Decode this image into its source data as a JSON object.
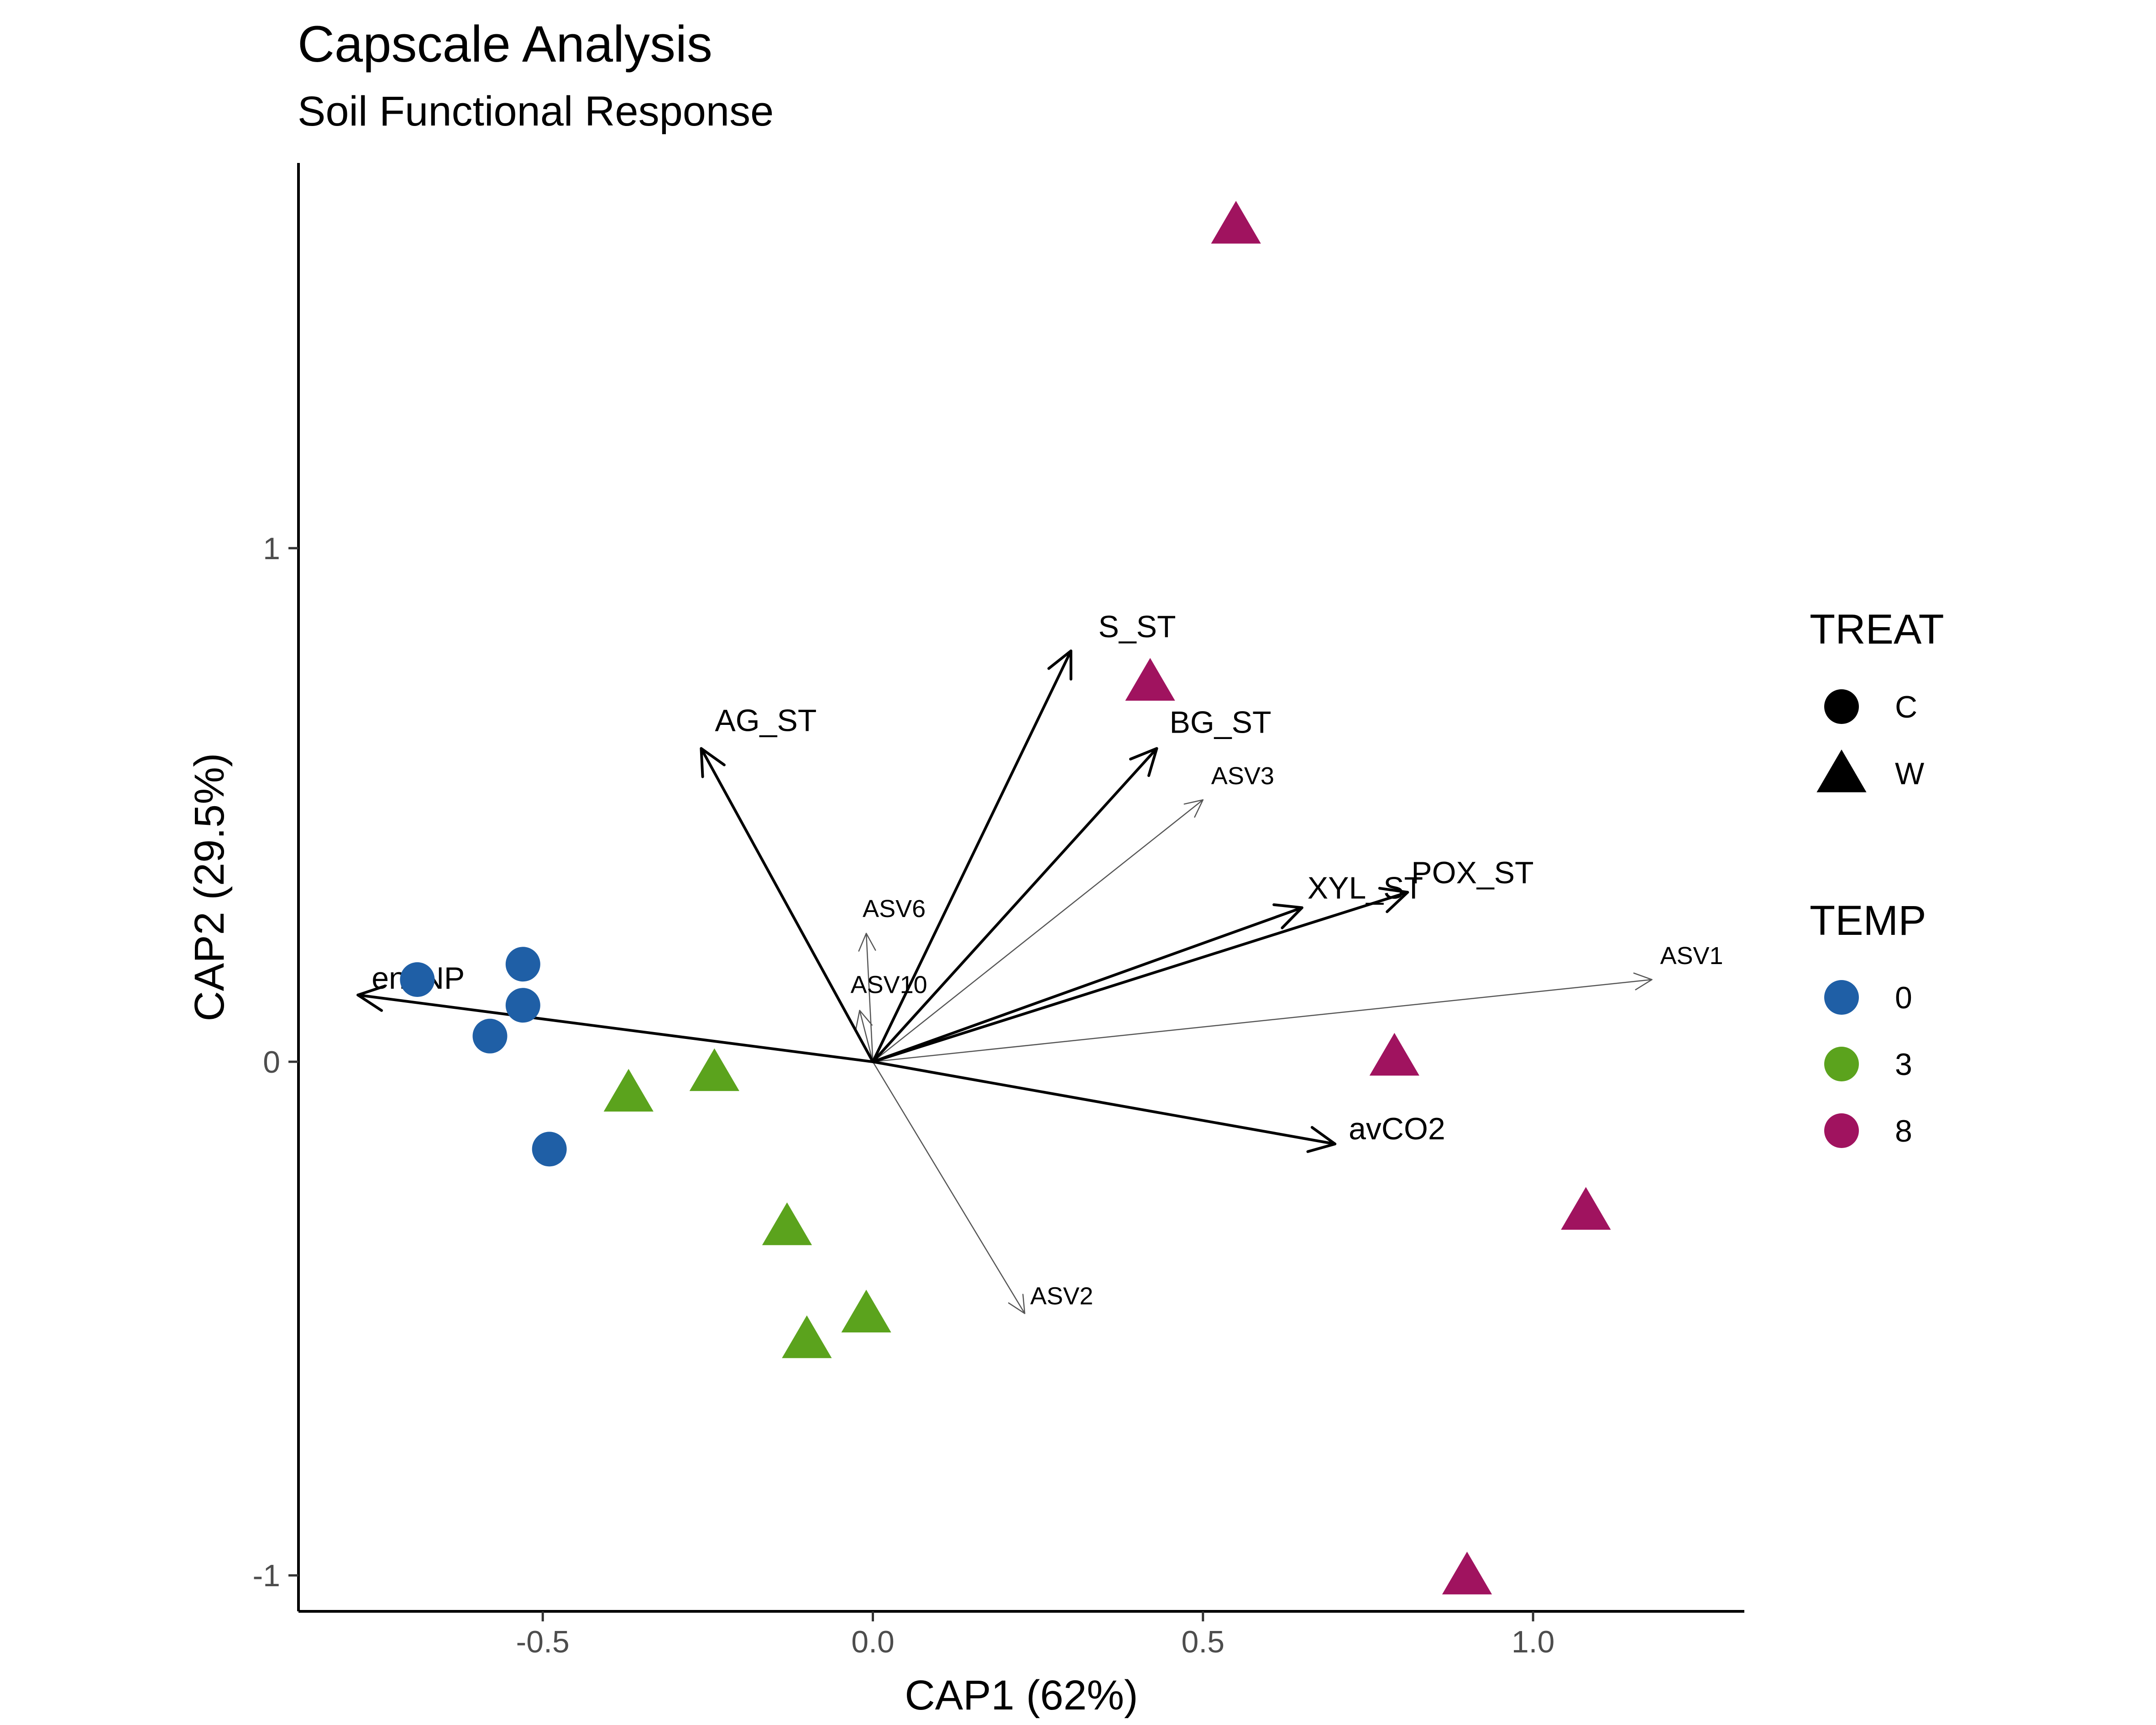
{
  "chart_data": {
    "type": "scatter",
    "title": "Capscale Analysis",
    "subtitle": "Soil Functional Response",
    "xlabel": "CAP1 (62%)",
    "ylabel": "CAP2 (29.5%)",
    "xlim": [
      -0.87,
      1.32
    ],
    "ylim": [
      -1.07,
      1.75
    ],
    "x_ticks": [
      {
        "value": -0.5,
        "label": "-0.5"
      },
      {
        "value": 0.0,
        "label": "0.0"
      },
      {
        "value": 0.5,
        "label": "0.5"
      },
      {
        "value": 1.0,
        "label": "1.0"
      }
    ],
    "y_ticks": [
      {
        "value": -1,
        "label": "-1"
      },
      {
        "value": 0,
        "label": "0"
      },
      {
        "value": 1,
        "label": "1"
      }
    ],
    "grid": false,
    "legend_position": "right",
    "legends": [
      {
        "title": "TREAT",
        "entries": [
          {
            "label": "C",
            "shape": "circle"
          },
          {
            "label": "W",
            "shape": "triangle"
          }
        ]
      },
      {
        "title": "TEMP",
        "entries": [
          {
            "label": "0",
            "color": "#1f5fa6"
          },
          {
            "label": "3",
            "color": "#5ba31d"
          },
          {
            "label": "8",
            "color": "#a0135f"
          }
        ]
      }
    ],
    "points": [
      {
        "x": -0.69,
        "y": 0.16,
        "treat": "C",
        "temp": "0"
      },
      {
        "x": -0.53,
        "y": 0.19,
        "treat": "C",
        "temp": "0"
      },
      {
        "x": -0.53,
        "y": 0.11,
        "treat": "C",
        "temp": "0"
      },
      {
        "x": -0.58,
        "y": 0.05,
        "treat": "C",
        "temp": "0"
      },
      {
        "x": -0.49,
        "y": -0.17,
        "treat": "C",
        "temp": "0"
      },
      {
        "x": -0.37,
        "y": -0.06,
        "treat": "W",
        "temp": "3"
      },
      {
        "x": -0.24,
        "y": -0.02,
        "treat": "W",
        "temp": "3"
      },
      {
        "x": -0.13,
        "y": -0.32,
        "treat": "W",
        "temp": "3"
      },
      {
        "x": -0.01,
        "y": -0.49,
        "treat": "W",
        "temp": "3"
      },
      {
        "x": -0.1,
        "y": -0.54,
        "treat": "W",
        "temp": "3"
      },
      {
        "x": 0.55,
        "y": 1.63,
        "treat": "W",
        "temp": "8"
      },
      {
        "x": 0.42,
        "y": 0.74,
        "treat": "W",
        "temp": "8"
      },
      {
        "x": 0.79,
        "y": 0.01,
        "treat": "W",
        "temp": "8"
      },
      {
        "x": 1.08,
        "y": -0.29,
        "treat": "W",
        "temp": "8"
      },
      {
        "x": 0.9,
        "y": -1.0,
        "treat": "W",
        "temp": "8"
      }
    ],
    "vectors_constraints": [
      {
        "name": "enzNP",
        "x": -0.78,
        "y": 0.13
      },
      {
        "name": "AG_ST",
        "x": -0.26,
        "y": 0.61
      },
      {
        "name": "S_ST",
        "x": 0.3,
        "y": 0.8
      },
      {
        "name": "BG_ST",
        "x": 0.43,
        "y": 0.61
      },
      {
        "name": "XYL_ST",
        "x": 0.65,
        "y": 0.3
      },
      {
        "name": "POX_ST",
        "x": 0.81,
        "y": 0.33
      },
      {
        "name": "avCO2",
        "x": 0.7,
        "y": -0.16
      }
    ],
    "vectors_species": [
      {
        "name": "ASV3",
        "x": 0.5,
        "y": 0.51
      },
      {
        "name": "ASV6",
        "x": -0.01,
        "y": 0.25
      },
      {
        "name": "ASV10",
        "x": -0.02,
        "y": 0.1
      },
      {
        "name": "ASV1",
        "x": 1.18,
        "y": 0.16
      },
      {
        "name": "ASV2",
        "x": 0.23,
        "y": -0.49
      }
    ]
  }
}
